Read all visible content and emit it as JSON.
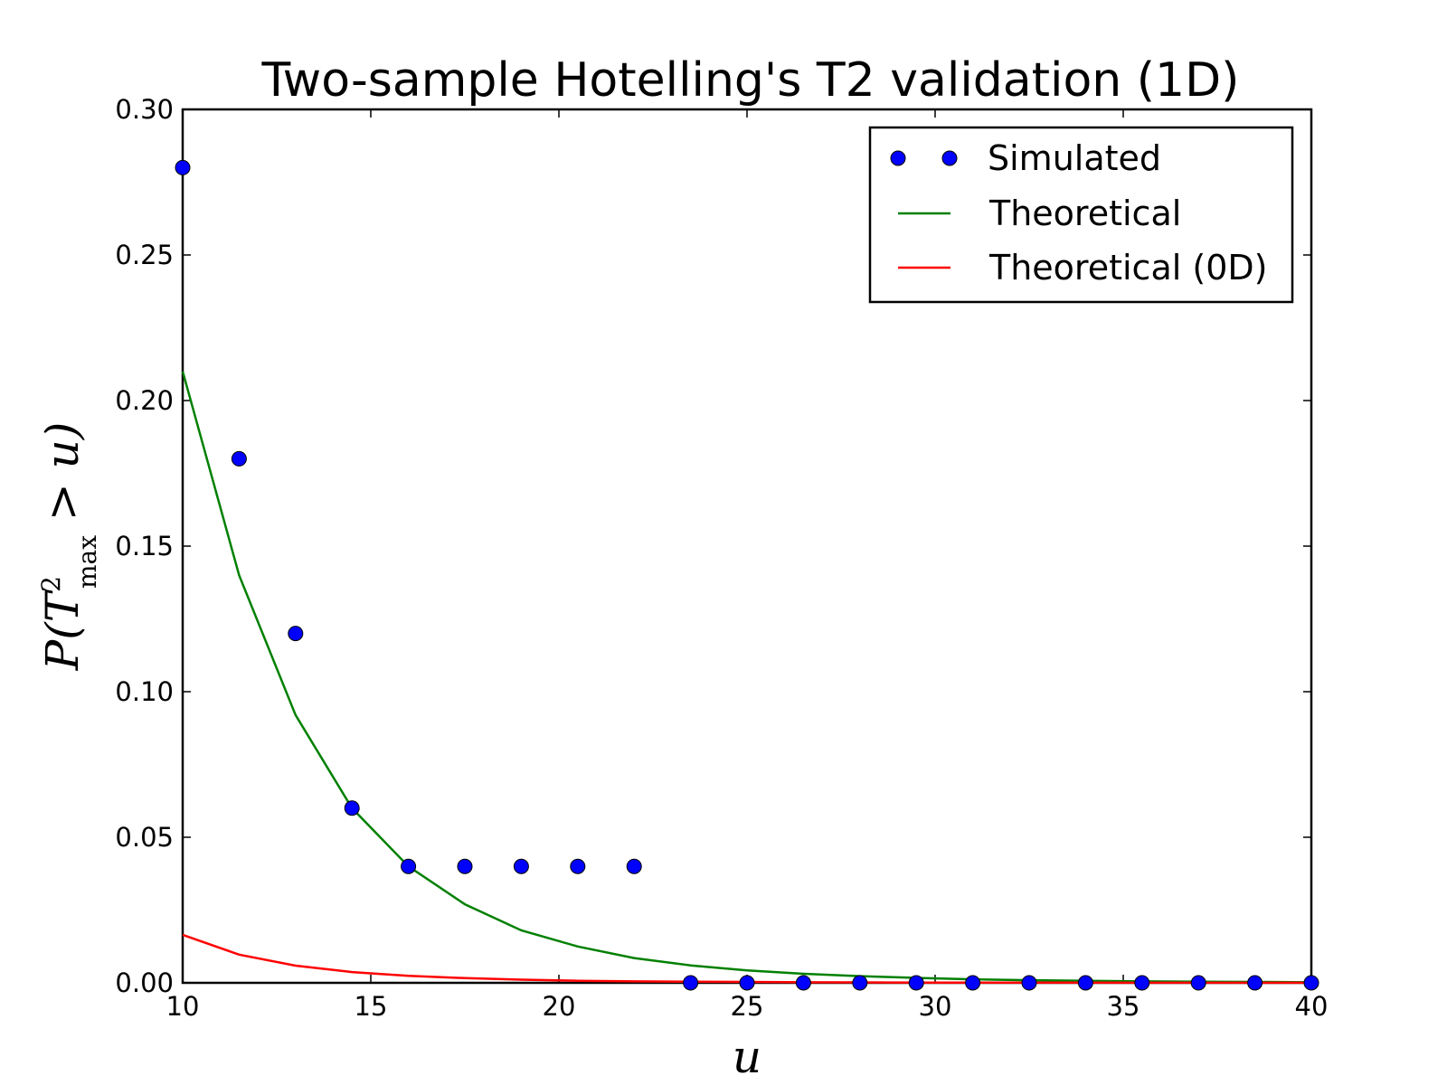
{
  "chart_data": {
    "type": "line",
    "title": "Two-sample Hotelling's T2 validation (1D)",
    "xlabel": "u",
    "ylabel": "P(T²max > u)",
    "ylabel_parts": {
      "p": "P(T",
      "sup": "2",
      "sub": "max",
      "rest": " > u)"
    },
    "xlim": [
      10,
      40
    ],
    "ylim": [
      0,
      0.3
    ],
    "x_ticks": [
      10,
      15,
      20,
      25,
      30,
      35,
      40
    ],
    "y_ticks": [
      0.0,
      0.05,
      0.1,
      0.15,
      0.2,
      0.25,
      0.3
    ],
    "x_tick_labels": [
      "10",
      "15",
      "20",
      "25",
      "30",
      "35",
      "40"
    ],
    "y_tick_labels": [
      "0.00",
      "0.05",
      "0.10",
      "0.15",
      "0.20",
      "0.25",
      "0.30"
    ],
    "grid": false,
    "legend_position": "top-right",
    "series": [
      {
        "name": "Simulated",
        "kind": "scatter",
        "color": "#0000ff",
        "x": [
          10,
          11.5,
          13,
          14.5,
          16,
          17.5,
          19,
          20.5,
          22,
          23.5,
          25,
          26.5,
          28,
          29.5,
          31,
          32.5,
          34,
          35.5,
          37,
          38.5,
          40
        ],
        "y": [
          0.28,
          0.18,
          0.12,
          0.06,
          0.04,
          0.04,
          0.04,
          0.04,
          0.04,
          0,
          0,
          0,
          0,
          0,
          0,
          0,
          0,
          0,
          0,
          0,
          0
        ]
      },
      {
        "name": "Theoretical",
        "kind": "line",
        "color": "#008000",
        "x": [
          10,
          11.5,
          13,
          14.5,
          16,
          17.5,
          19,
          20.5,
          22,
          23.5,
          25,
          26.5,
          28,
          29.5,
          31,
          32.5,
          34,
          35.5,
          37,
          38.5,
          40
        ],
        "y": [
          0.21,
          0.14,
          0.092,
          0.06,
          0.04,
          0.027,
          0.018,
          0.0125,
          0.0085,
          0.006,
          0.0043,
          0.0031,
          0.0023,
          0.0017,
          0.0012,
          0.0009,
          0.0007,
          0.0005,
          0.0004,
          0.0003,
          0.0002
        ]
      },
      {
        "name": "Theoretical (0D)",
        "kind": "line",
        "color": "#ff0000",
        "x": [
          10,
          11.5,
          13,
          14.5,
          16,
          17.5,
          19,
          20.5,
          22,
          23.5,
          25,
          26.5,
          28,
          29.5,
          31,
          32.5,
          34,
          35.5,
          37,
          38.5,
          40
        ],
        "y": [
          0.0165,
          0.0097,
          0.0059,
          0.0037,
          0.0024,
          0.0016,
          0.0011,
          0.0007,
          0.0005,
          0.0004,
          0.0003,
          0.0002,
          0.00015,
          0.0001,
          8e-05,
          6e-05,
          5e-05,
          4e-05,
          3e-05,
          2e-05,
          2e-05
        ]
      }
    ]
  }
}
